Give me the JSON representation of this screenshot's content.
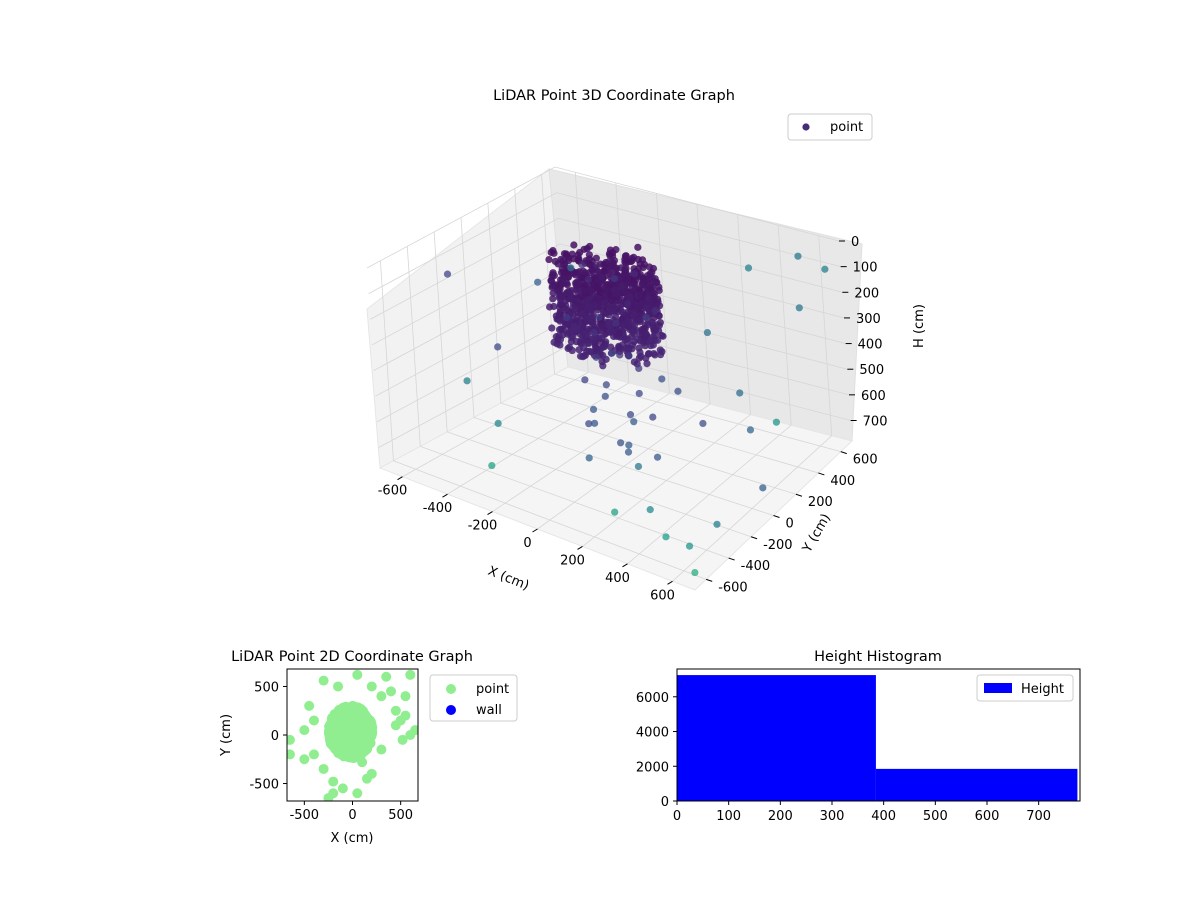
{
  "chart_data": [
    {
      "type": "scatter3d",
      "title": "LiDAR Point 3D Coordinate Graph",
      "xlabel": "X (cm)",
      "ylabel": "Y (cm)",
      "zlabel": "H (cm)",
      "xlim": [
        -700,
        700
      ],
      "ylim": [
        -700,
        700
      ],
      "zlim": [
        780,
        0
      ],
      "xticks": [
        "-600",
        "-400",
        "-200",
        "0",
        "200",
        "400",
        "600"
      ],
      "yticks": [
        "-600",
        "-400",
        "-200",
        "0",
        "200",
        "400",
        "600"
      ],
      "zticks": [
        "0",
        "100",
        "200",
        "300",
        "400",
        "500",
        "600",
        "700"
      ],
      "zaxis_inverted": true,
      "colormap": "viridis",
      "legend": {
        "entries": [
          "point"
        ],
        "position": "upper-right",
        "colors": [
          "#472c7a"
        ]
      },
      "series": [
        {
          "name": "point",
          "description": "dense cloud around the origin",
          "points_xyh": [
            [
              -150,
              0,
              20
            ],
            [
              -100,
              50,
              40
            ],
            [
              -50,
              -100,
              30
            ],
            [
              0,
              0,
              60
            ],
            [
              50,
              100,
              50
            ],
            [
              -200,
              100,
              80
            ],
            [
              100,
              -50,
              100
            ],
            [
              -80,
              150,
              120
            ],
            [
              20,
              -150,
              140
            ],
            [
              150,
              80,
              160
            ],
            [
              -150,
              -120,
              200
            ],
            [
              80,
              120,
              220
            ],
            [
              -30,
              60,
              250
            ],
            [
              120,
              -100,
              280
            ],
            [
              -120,
              30,
              300
            ],
            [
              40,
              -40,
              320
            ],
            [
              -60,
              -60,
              350
            ],
            [
              90,
              20,
              380
            ],
            [
              -90,
              110,
              400
            ],
            [
              10,
              -110,
              420
            ],
            [
              130,
              130,
              450
            ],
            [
              -140,
              -30,
              470
            ],
            [
              60,
              60,
              500
            ],
            [
              -40,
              -140,
              520
            ],
            [
              160,
              -10,
              540
            ],
            [
              -110,
              70,
              560
            ],
            [
              30,
              30,
              580
            ],
            [
              -70,
              -90,
              600
            ],
            [
              110,
              -130,
              620
            ],
            [
              0,
              100,
              640
            ],
            [
              -160,
              10,
              660
            ],
            [
              70,
              -70,
              680
            ],
            [
              -20,
              20,
              700
            ],
            [
              140,
              40,
              720
            ],
            [
              -100,
              -100,
              740
            ]
          ]
        },
        {
          "name": "point",
          "description": "scattered outer points",
          "points_xyh": [
            [
              -650,
              -200,
              150
            ],
            [
              -550,
              300,
              300
            ],
            [
              -400,
              -500,
              400
            ],
            [
              300,
              -600,
              650
            ],
            [
              500,
              -550,
              700
            ],
            [
              600,
              500,
              200
            ],
            [
              650,
              650,
              100
            ],
            [
              550,
              600,
              50
            ],
            [
              400,
              300,
              500
            ],
            [
              250,
              -300,
              600
            ],
            [
              -300,
              -450,
              550
            ],
            [
              450,
              -100,
              450
            ],
            [
              200,
              400,
              350
            ],
            [
              -450,
              400,
              250
            ],
            [
              350,
              -400,
              700
            ],
            [
              -250,
              -600,
              650
            ],
            [
              600,
              -300,
              720
            ],
            [
              500,
              200,
              580
            ],
            [
              300,
              600,
              150
            ],
            [
              -500,
              -100,
              420
            ],
            [
              550,
              -450,
              760
            ],
            [
              450,
              500,
              680
            ],
            [
              600,
              100,
              740
            ],
            [
              400,
              -200,
              300
            ],
            [
              650,
              -600,
              770
            ]
          ]
        }
      ]
    },
    {
      "type": "scatter",
      "title": "LiDAR Point 2D Coordinate Graph",
      "xlabel": "X (cm)",
      "ylabel": "Y (cm)",
      "xlim": [
        -680,
        680
      ],
      "ylim": [
        -680,
        680
      ],
      "xticks": [
        "-500",
        "0",
        "500"
      ],
      "yticks": [
        "-500",
        "0",
        "500"
      ],
      "legend": {
        "entries": [
          "point",
          "wall"
        ],
        "position": "outside-right",
        "colors": [
          "#90ee90",
          "#0000ff"
        ]
      },
      "series": [
        {
          "name": "point",
          "points": [
            [
              -150,
              500
            ],
            [
              50,
              620
            ],
            [
              -300,
              560
            ],
            [
              200,
              500
            ],
            [
              350,
              600
            ],
            [
              400,
              450
            ],
            [
              550,
              400
            ],
            [
              600,
              620
            ],
            [
              -450,
              300
            ],
            [
              -500,
              50
            ],
            [
              -650,
              -50
            ],
            [
              -650,
              -200
            ],
            [
              -400,
              -200
            ],
            [
              -300,
              -350
            ],
            [
              -200,
              -480
            ],
            [
              -100,
              -550
            ],
            [
              50,
              -600
            ],
            [
              150,
              -450
            ],
            [
              100,
              -280
            ],
            [
              300,
              -150
            ],
            [
              450,
              100
            ],
            [
              500,
              150
            ],
            [
              520,
              -50
            ],
            [
              600,
              0
            ],
            [
              650,
              50
            ],
            [
              -200,
              -600
            ],
            [
              -250,
              -650
            ],
            [
              200,
              -400
            ],
            [
              550,
              200
            ],
            [
              450,
              250
            ],
            [
              -400,
              150
            ],
            [
              -500,
              -250
            ],
            [
              0,
              300
            ],
            [
              300,
              400
            ],
            [
              -100,
              200
            ]
          ],
          "cluster": {
            "center": [
              -20,
              30
            ],
            "rx": 230,
            "ry": 270
          }
        },
        {
          "name": "wall",
          "points": []
        }
      ]
    },
    {
      "type": "histogram",
      "title": "Height Histogram",
      "xlabel": "",
      "ylabel": "",
      "xlim": [
        0,
        780
      ],
      "ylim": [
        0,
        7600
      ],
      "xticks": [
        "0",
        "100",
        "200",
        "300",
        "400",
        "500",
        "600",
        "700"
      ],
      "yticks": [
        "0",
        "2000",
        "4000",
        "6000"
      ],
      "legend": {
        "entries": [
          "Height"
        ],
        "position": "upper-right",
        "colors": [
          "#0000ff"
        ]
      },
      "series": [
        {
          "name": "Height",
          "bins": [
            {
              "start": 0,
              "end": 385,
              "count": 7250
            },
            {
              "start": 385,
              "end": 775,
              "count": 1850
            }
          ]
        }
      ]
    }
  ]
}
